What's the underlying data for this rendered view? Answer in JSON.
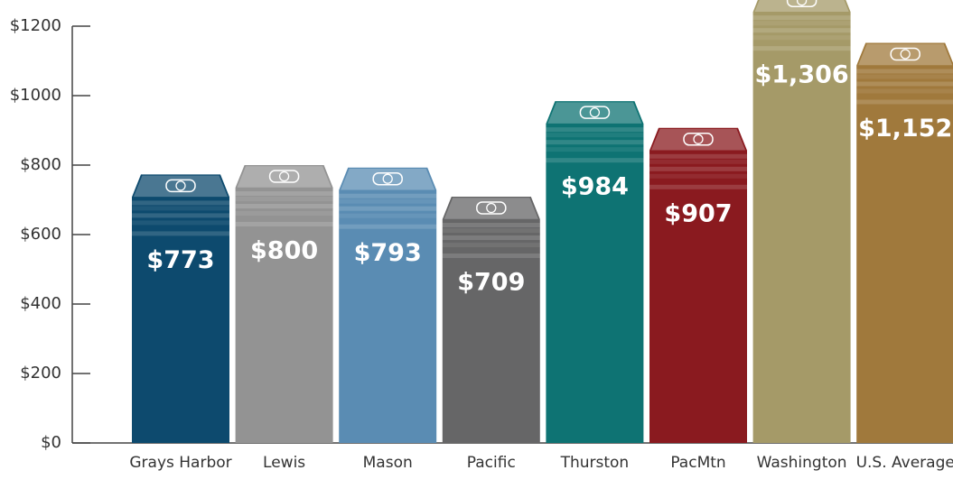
{
  "chart_data": {
    "type": "bar",
    "categories": [
      "Grays Harbor",
      "Lewis",
      "Mason",
      "Pacific",
      "Thurston",
      "PacMtn",
      "Washington",
      "U.S. Average"
    ],
    "values": [
      773,
      800,
      793,
      709,
      984,
      907,
      1306,
      1152
    ],
    "value_labels": [
      "$773",
      "$800",
      "$793",
      "$709",
      "$984",
      "$907",
      "$1,306",
      "$1,152"
    ],
    "colors": [
      "#0d4a6e",
      "#939393",
      "#5a8cb3",
      "#666667",
      "#0e7373",
      "#8a1a1f",
      "#a59a68",
      "#a0793c"
    ],
    "ylim": [
      0,
      1200
    ],
    "yticks": [
      {
        "value": 0,
        "label": "$0"
      },
      {
        "value": 200,
        "label": "$200"
      },
      {
        "value": 400,
        "label": "$400"
      },
      {
        "value": 600,
        "label": "$600"
      },
      {
        "value": 800,
        "label": "$800"
      },
      {
        "value": 1000,
        "label": "$1000"
      },
      {
        "value": 1200,
        "label": "$1200"
      }
    ]
  }
}
